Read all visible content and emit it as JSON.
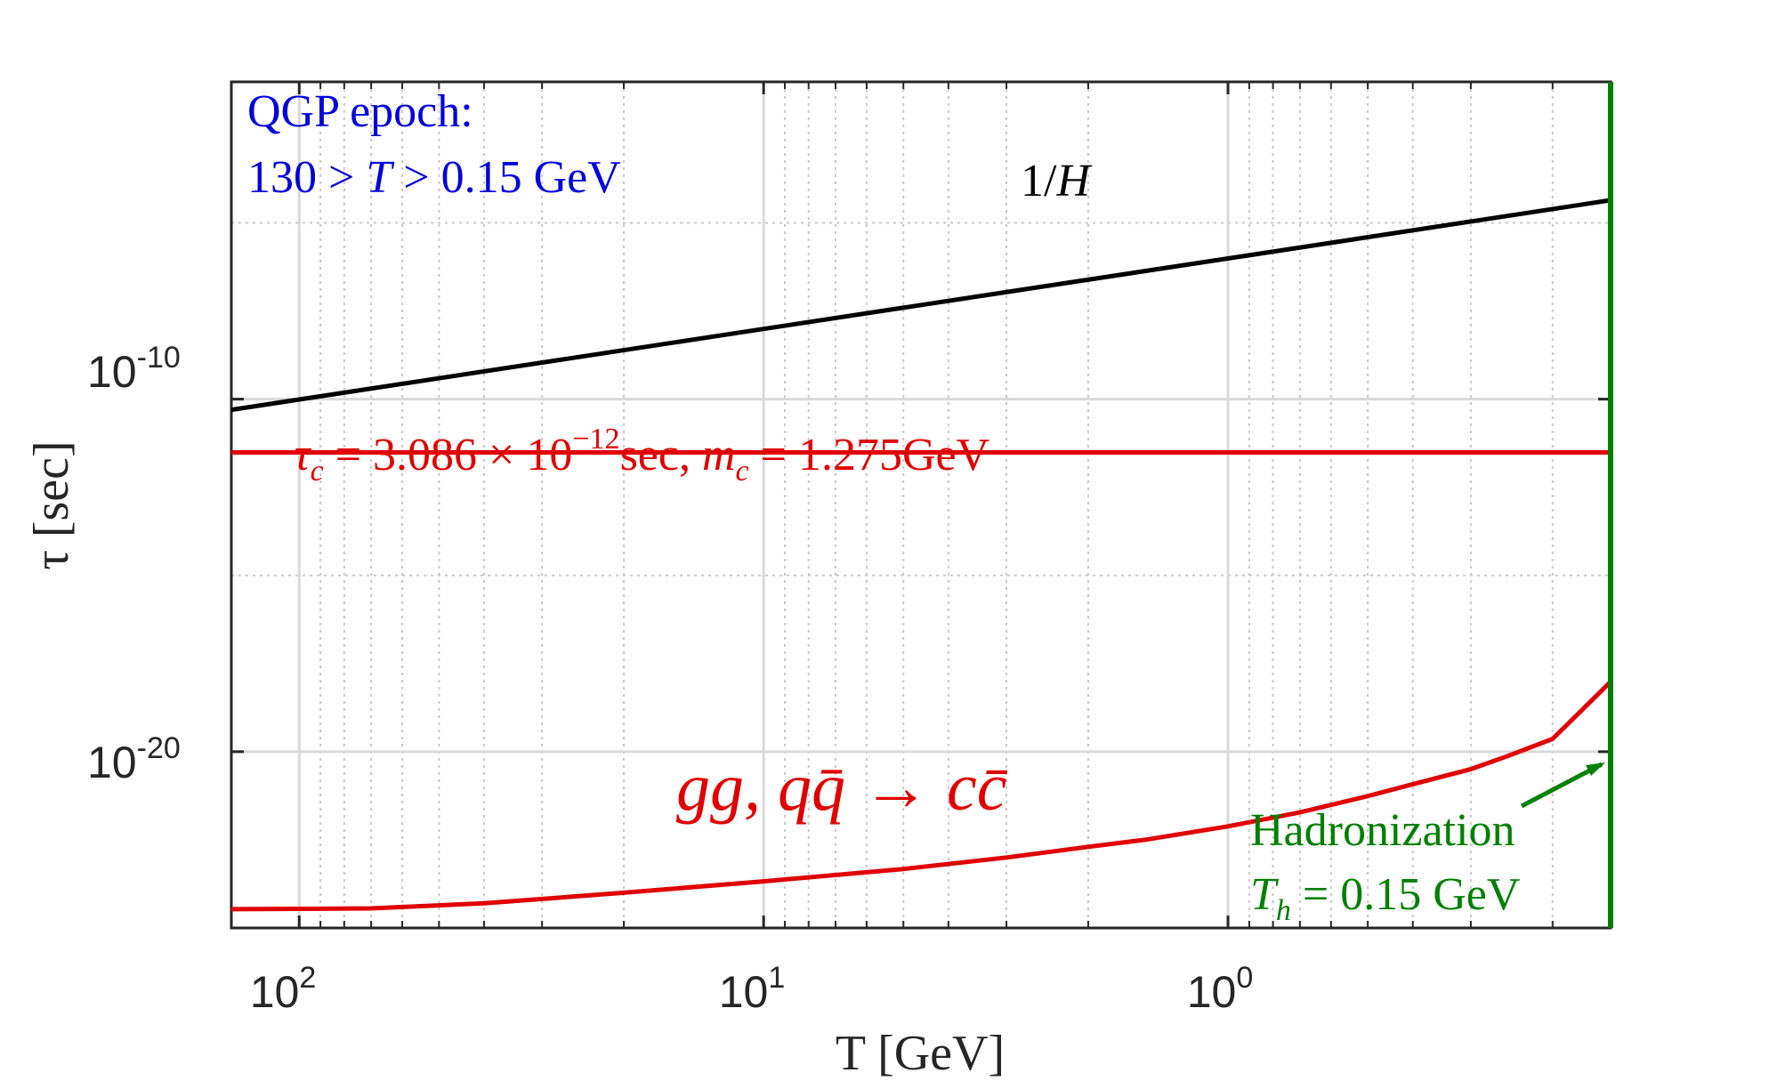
{
  "chart_data": {
    "type": "line",
    "title": "",
    "xlabel": "T [GeV]",
    "ylabel": "τ [sec]",
    "x_scale": "log",
    "x_reversed": true,
    "y_scale": "log",
    "xlim": [
      140,
      0.15
    ],
    "ylim": [
      1e-25,
      0.1
    ],
    "grid": true,
    "minor_grid": true,
    "x_ticks": [
      {
        "value": 100,
        "base": "10",
        "exp": "2"
      },
      {
        "value": 10,
        "base": "10",
        "exp": "1"
      },
      {
        "value": 1,
        "base": "10",
        "exp": "0"
      }
    ],
    "y_ticks": [
      {
        "value": 1e-10,
        "base": "10",
        "exp": "-10"
      },
      {
        "value": 1e-20,
        "base": "10",
        "exp": "-20"
      }
    ],
    "series": [
      {
        "name": "1/H",
        "color": "#000000",
        "x": [
          140,
          100,
          10,
          1,
          0.15
        ],
        "y": [
          5e-11,
          9.8e-11,
          9.8e-09,
          9.8e-07,
          4.4e-05
        ]
      },
      {
        "name": "τc = 3.086 × 10^-12 sec, mc = 1.275GeV",
        "color": "#e00000",
        "x": [
          140,
          0.15
        ],
        "y": [
          3.086e-12,
          3.086e-12
        ]
      },
      {
        "name": "gg, qq̄ → cc̄",
        "color": "#e00000",
        "x": [
          140,
          70,
          40,
          20,
          10,
          5,
          3,
          2,
          1.5,
          1,
          0.7,
          0.5,
          0.4,
          0.3,
          0.25,
          0.2,
          0.15
        ],
        "y": [
          3.4e-25,
          3.6e-25,
          5e-25,
          1e-24,
          2.1e-24,
          4.7e-24,
          1e-23,
          2e-23,
          3.2e-23,
          7.6e-23,
          1.9e-22,
          5.5e-22,
          1.2e-21,
          3.2e-21,
          7.5e-21,
          2.3e-20,
          9.6e-19
        ]
      },
      {
        "name": "Hadronization",
        "color": "#008000",
        "x": [
          0.15,
          0.15
        ],
        "y": [
          1e-25,
          0.1
        ]
      }
    ],
    "annotations": {
      "epoch_line1": "QGP epoch:",
      "epoch_line2_a": "130 > ",
      "epoch_line2_T": "T",
      "epoch_line2_b": " > 0.15 GeV",
      "hubble_a": "1/",
      "hubble_H": "H",
      "tau_tau": "τ",
      "tau_sub": "c",
      "tau_a": " = 3.086 × 10",
      "tau_exp": "−12",
      "tau_b": "sec, ",
      "tau_m": "m",
      "tau_m_sub": "c",
      "tau_c": " = 1.275GeV",
      "process": "gg, qq̄ → cc̄",
      "hadronization": "Hadronization",
      "th_T": "T",
      "th_sub": "h",
      "th_rest": " = 0.15 GeV"
    },
    "colors": {
      "epoch": "#0000dd",
      "hubble": "#000000",
      "charm": "#e00000",
      "hadronization": "#008000"
    }
  }
}
